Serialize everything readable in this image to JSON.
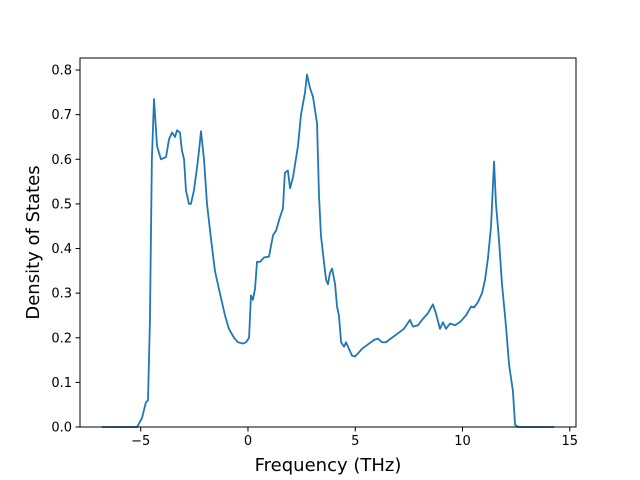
{
  "chart_data": {
    "type": "line",
    "x_label": "Frequency (THz)",
    "y_label": "Density of States",
    "color": "#1f77b4",
    "xlim": [
      -7.83,
      15.29
    ],
    "ylim": [
      0,
      0.827
    ],
    "xticks": [
      {
        "value": -5,
        "label": "−5"
      },
      0,
      5,
      10,
      15
    ],
    "yticks": [
      {
        "value": 0,
        "label": "0.0"
      },
      0.1,
      0.2,
      0.3,
      0.4,
      0.5,
      0.6,
      0.7,
      0.8
    ],
    "x": [
      -6.81,
      -5.17,
      -4.94,
      -4.76,
      -4.66,
      -4.57,
      -4.48,
      -4.38,
      -4.24,
      -4.06,
      -3.82,
      -3.68,
      -3.54,
      -3.4,
      -3.31,
      -3.17,
      -3.08,
      -2.98,
      -2.89,
      -2.75,
      -2.66,
      -2.52,
      -2.38,
      -2.28,
      -2.19,
      -2.05,
      -1.91,
      -1.72,
      -1.54,
      -1.31,
      -1.07,
      -0.89,
      -0.65,
      -0.47,
      -0.23,
      -0.09,
      0.05,
      0.14,
      0.23,
      0.33,
      0.42,
      0.56,
      0.75,
      0.98,
      1.17,
      1.31,
      1.49,
      1.63,
      1.72,
      1.86,
      1.96,
      2.1,
      2.33,
      2.47,
      2.66,
      2.75,
      2.89,
      3.03,
      3.22,
      3.31,
      3.4,
      3.54,
      3.64,
      3.73,
      3.82,
      3.92,
      4.06,
      4.15,
      4.24,
      4.34,
      4.48,
      4.57,
      4.71,
      4.85,
      4.99,
      5.13,
      5.31,
      5.59,
      5.87,
      6.06,
      6.25,
      6.43,
      6.71,
      6.99,
      7.27,
      7.55,
      7.69,
      7.93,
      8.11,
      8.39,
      8.62,
      8.76,
      8.95,
      9.09,
      9.23,
      9.42,
      9.65,
      9.88,
      10.16,
      10.4,
      10.54,
      10.72,
      10.91,
      11.05,
      11.19,
      11.33,
      11.47,
      11.56,
      11.7,
      11.84,
      11.98,
      12.07,
      12.17,
      12.26,
      12.35,
      12.45,
      12.59,
      14.27
    ],
    "values": [
      0,
      0,
      0.02,
      0.055,
      0.06,
      0.24,
      0.6,
      0.735,
      0.63,
      0.6,
      0.605,
      0.645,
      0.66,
      0.65,
      0.665,
      0.66,
      0.62,
      0.6,
      0.53,
      0.5,
      0.5,
      0.53,
      0.58,
      0.62,
      0.663,
      0.6,
      0.5,
      0.42,
      0.35,
      0.3,
      0.25,
      0.22,
      0.2,
      0.19,
      0.187,
      0.19,
      0.2,
      0.295,
      0.285,
      0.31,
      0.37,
      0.37,
      0.38,
      0.382,
      0.43,
      0.44,
      0.47,
      0.49,
      0.57,
      0.575,
      0.535,
      0.56,
      0.63,
      0.7,
      0.75,
      0.79,
      0.76,
      0.74,
      0.68,
      0.52,
      0.43,
      0.37,
      0.33,
      0.32,
      0.345,
      0.355,
      0.32,
      0.27,
      0.25,
      0.19,
      0.18,
      0.19,
      0.175,
      0.16,
      0.158,
      0.165,
      0.175,
      0.185,
      0.195,
      0.198,
      0.19,
      0.19,
      0.2,
      0.21,
      0.22,
      0.24,
      0.225,
      0.228,
      0.24,
      0.255,
      0.275,
      0.255,
      0.22,
      0.235,
      0.22,
      0.232,
      0.228,
      0.235,
      0.25,
      0.27,
      0.268,
      0.28,
      0.3,
      0.33,
      0.38,
      0.45,
      0.595,
      0.5,
      0.42,
      0.32,
      0.25,
      0.2,
      0.14,
      0.11,
      0.08,
      0.005,
      0,
      0
    ]
  }
}
